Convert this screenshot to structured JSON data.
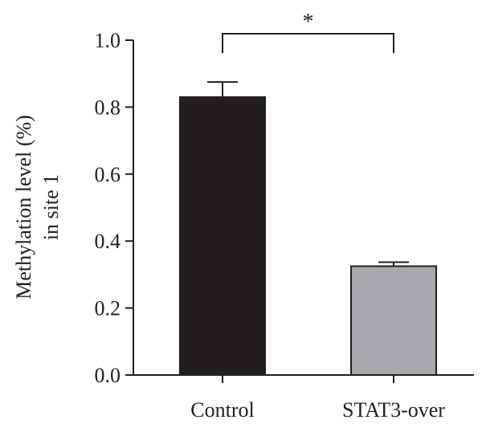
{
  "chart_data": {
    "type": "bar",
    "categories": [
      "Control",
      "STAT3-over"
    ],
    "values": [
      0.83,
      0.325
    ],
    "errors": [
      0.045,
      0.012
    ],
    "ylabel_lines": [
      "Methylation level (%)",
      "in site 1"
    ],
    "ylim": [
      0,
      1.0
    ],
    "yticks": [
      "0.0",
      "0.2",
      "0.4",
      "0.6",
      "0.8",
      "1.0"
    ],
    "bar_colors": [
      "#231f20",
      "#a7a9ac"
    ],
    "significance": {
      "between": [
        0,
        1
      ],
      "label": "*"
    },
    "grid": false,
    "legend": "none"
  }
}
